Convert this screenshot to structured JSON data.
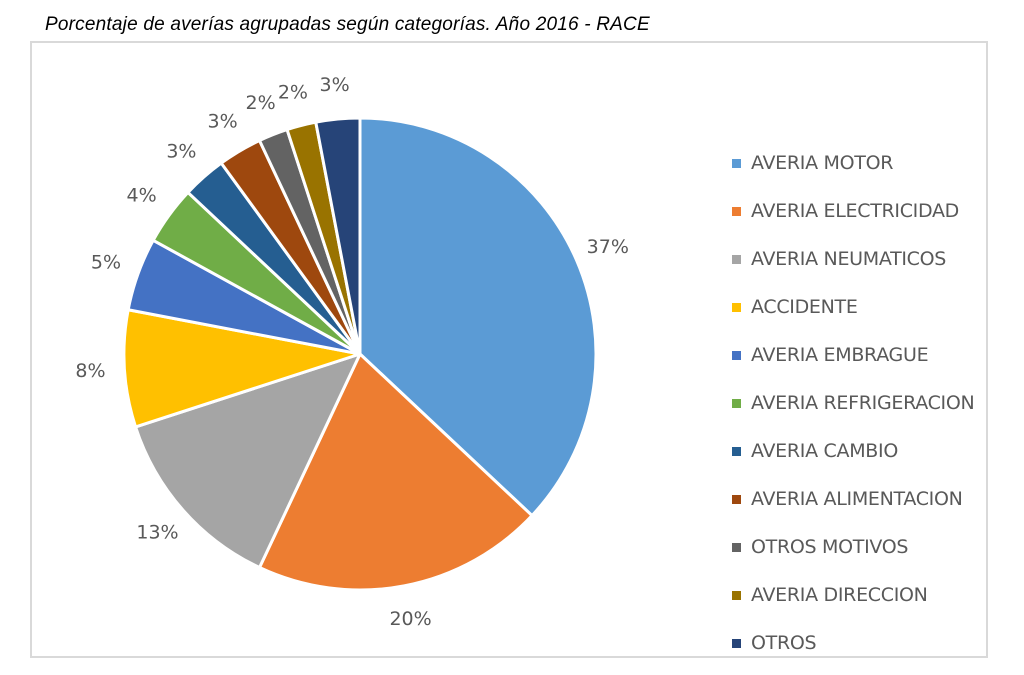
{
  "title": "Porcentaje de averías agrupadas según categorías. Año 2016 - RACE",
  "chart_data": {
    "type": "pie",
    "title": "Porcentaje de averías agrupadas según categorías. Año 2016 - RACE",
    "legend_position": "right",
    "slices": [
      {
        "label": "AVERIA MOTOR",
        "value": 37,
        "display": "37%",
        "color": "#5b9bd5"
      },
      {
        "label": "AVERIA ELECTRICIDAD",
        "value": 20,
        "display": "20%",
        "color": "#ed7d31"
      },
      {
        "label": "AVERIA NEUMATICOS",
        "value": 13,
        "display": "13%",
        "color": "#a5a5a5"
      },
      {
        "label": "ACCIDENTE",
        "value": 8,
        "display": "8%",
        "color": "#ffc000"
      },
      {
        "label": "AVERIA EMBRAGUE",
        "value": 5,
        "display": "5%",
        "color": "#4472c4"
      },
      {
        "label": "AVERIA REFRIGERACION",
        "value": 4,
        "display": "4%",
        "color": "#70ad47"
      },
      {
        "label": "AVERIA CAMBIO",
        "value": 3,
        "display": "3%",
        "color": "#255e91"
      },
      {
        "label": "AVERIA ALIMENTACION",
        "value": 3,
        "display": "3%",
        "color": "#9e480e"
      },
      {
        "label": "OTROS MOTIVOS",
        "value": 2,
        "display": "2%",
        "color": "#636363"
      },
      {
        "label": "AVERIA DIRECCION",
        "value": 2,
        "display": "2%",
        "color": "#997300"
      },
      {
        "label": "OTROS",
        "value": 3,
        "display": "3%",
        "color": "#264478"
      }
    ]
  }
}
